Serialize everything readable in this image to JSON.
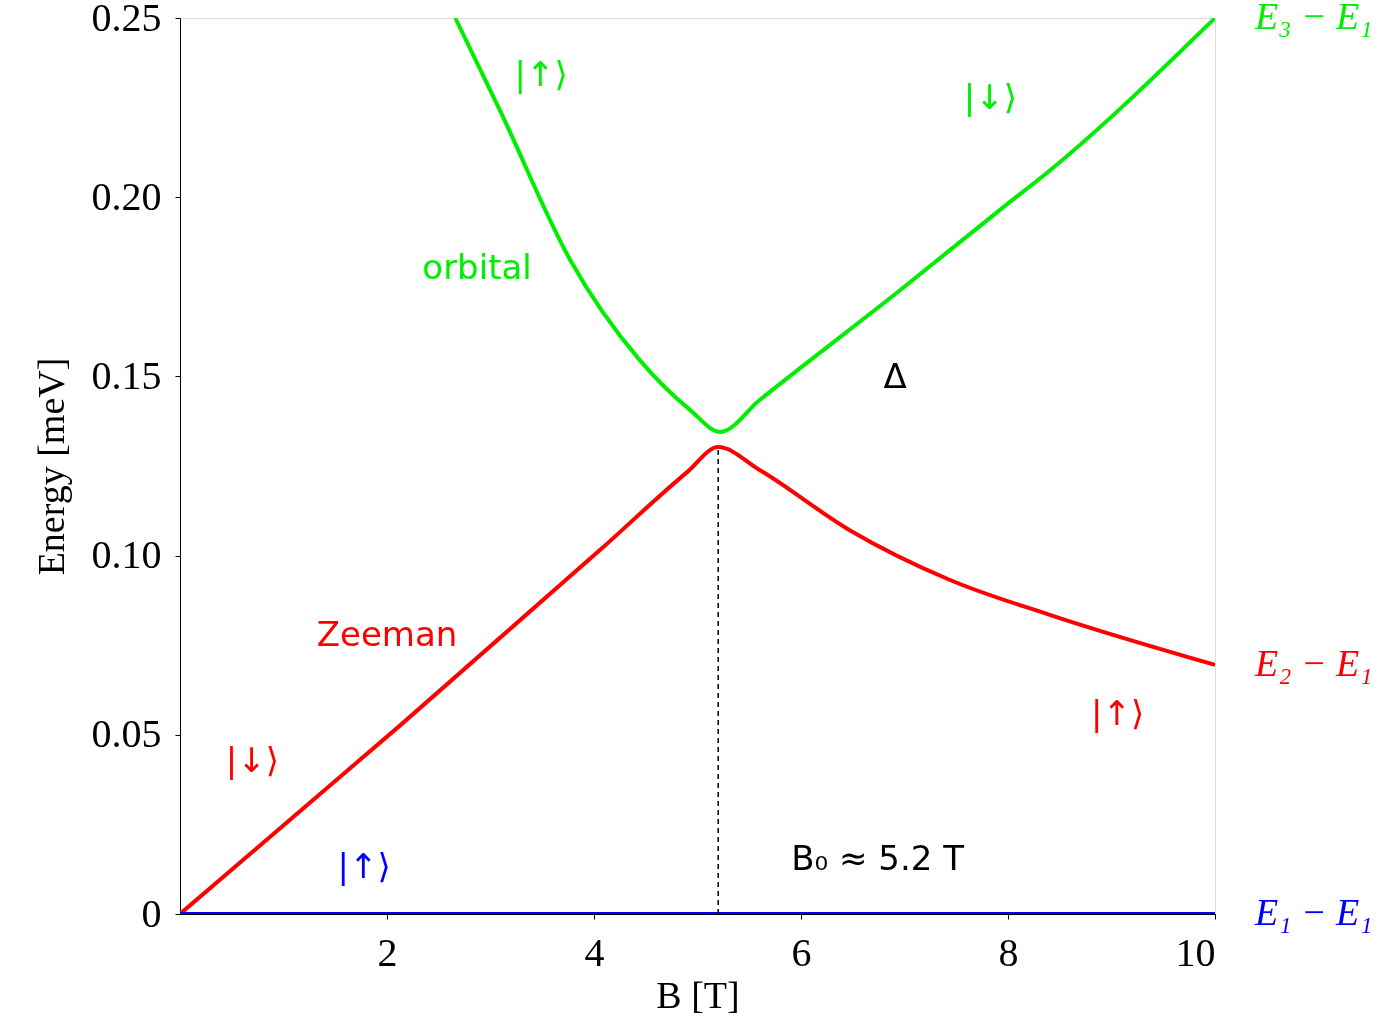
{
  "chart_data": {
    "type": "line",
    "xlabel": "B [T]",
    "ylabel": "Energy [meV]",
    "xlim": [
      0,
      10
    ],
    "ylim": [
      0,
      0.25
    ],
    "xticks": [
      2,
      4,
      6,
      8,
      10
    ],
    "yticks": [
      0,
      {
        "value": 0.05,
        "label": "0.05"
      },
      {
        "value": 0.1,
        "label": "0.10"
      },
      {
        "value": 0.15,
        "label": "0.15"
      },
      {
        "value": 0.2,
        "label": "0.20"
      },
      {
        "value": 0.25,
        "label": "0.25"
      }
    ],
    "grid": false,
    "series": [
      {
        "name": "E₃ − E₁",
        "color": "#00ee00",
        "x": [
          2.66,
          3.09,
          3.77,
          4.44,
          4.93,
          5.22,
          5.6,
          6.96,
          7.92,
          8.41,
          10
        ],
        "values": [
          0.25,
          0.2243,
          0.1825,
          0.1546,
          0.1406,
          0.1345,
          0.1434,
          0.1741,
          0.1964,
          0.2076,
          0.25
        ]
      },
      {
        "name": "E₂ − E₁",
        "color": "#ff0000",
        "x": [
          0,
          2.13,
          4.06,
          4.9,
          5.2,
          5.6,
          6.47,
          7.44,
          8.41,
          10
        ],
        "values": [
          0,
          0.0527,
          0.1016,
          0.1233,
          0.1303,
          0.1239,
          0.1071,
          0.0932,
          0.0834,
          0.0695
        ]
      },
      {
        "name": "E₁ − E₁",
        "color": "#0000ff",
        "x": [
          0,
          10
        ],
        "values": [
          0,
          0
        ]
      },
      {
        "type": "line",
        "color": "#000000",
        "line_style": "dashed",
        "x": [
          5.2,
          5.2
        ],
        "values": [
          0,
          0.1303
        ]
      }
    ],
    "annotations": [
      "orbital",
      "Zeeman",
      "|↑⟩",
      "|↓⟩",
      "|↑⟩",
      "|↓⟩",
      "|↑⟩",
      "B₀ ≈ 5.2 T",
      "Δ"
    ]
  }
}
